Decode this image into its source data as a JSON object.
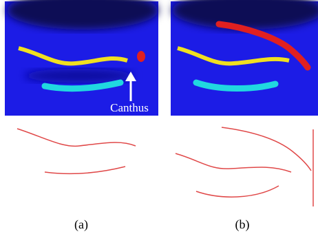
{
  "figure": {
    "panels": [
      {
        "annotation": "Canthus",
        "label": "(a)"
      },
      {
        "label": "(b)"
      }
    ]
  }
}
